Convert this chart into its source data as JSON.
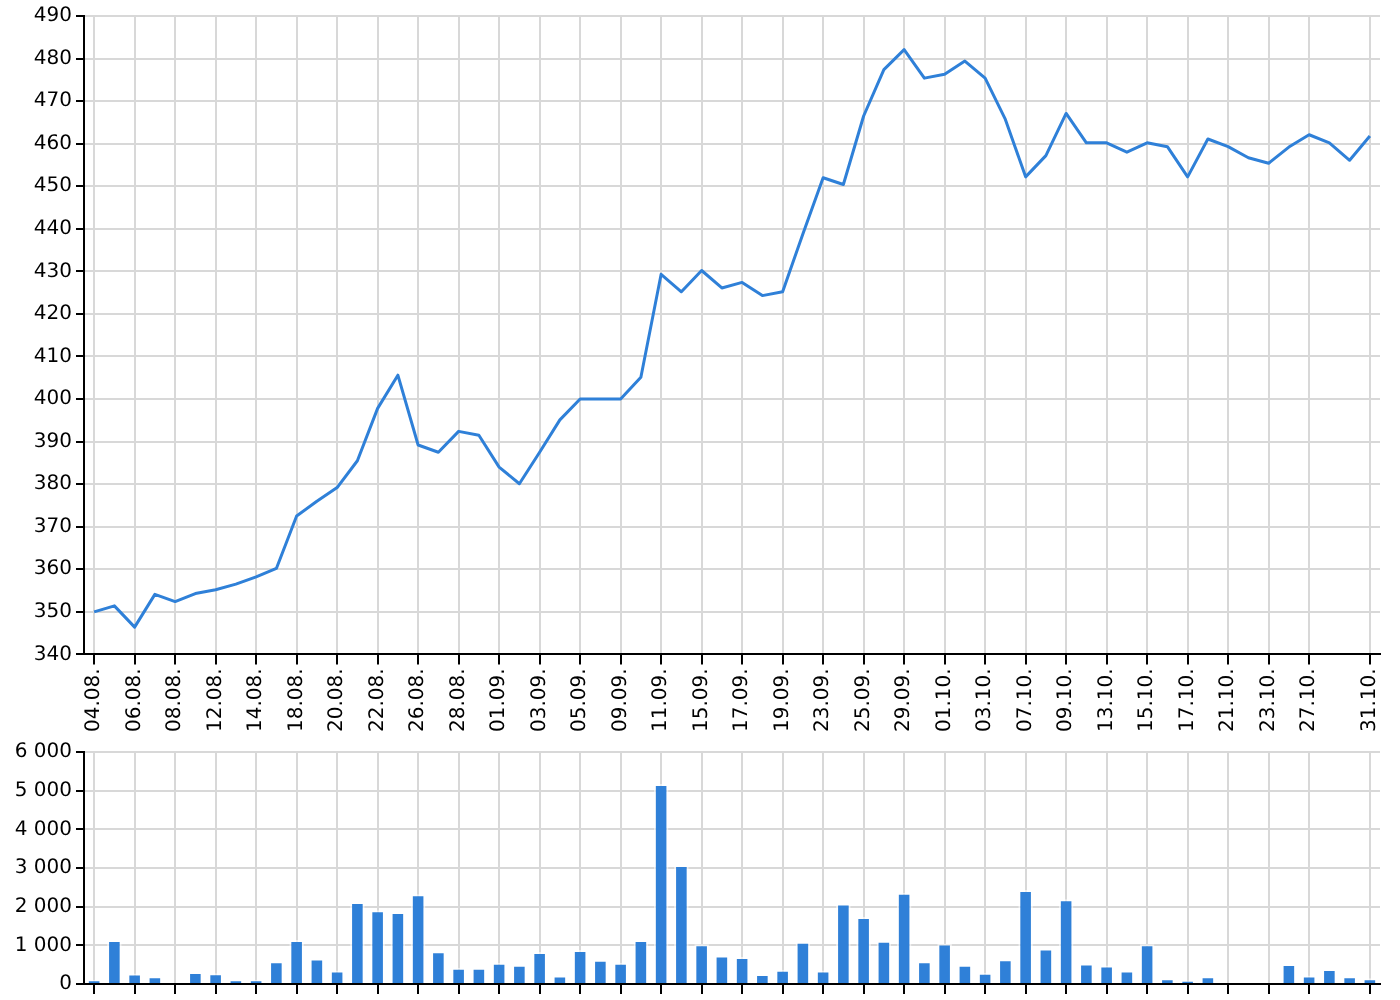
{
  "chart_data": [
    {
      "type": "line",
      "categories": [
        "04.08.",
        null,
        "06.08.",
        null,
        "08.08.",
        null,
        "12.08.",
        null,
        "14.08.",
        null,
        "18.08.",
        null,
        "20.08.",
        null,
        "22.08.",
        null,
        "26.08.",
        null,
        "28.08.",
        null,
        "01.09.",
        null,
        "03.09.",
        null,
        "05.09.",
        null,
        "09.09.",
        null,
        "11.09.",
        null,
        "15.09.",
        null,
        "17.09.",
        null,
        "19.09.",
        null,
        "23.09.",
        null,
        "25.09.",
        null,
        "29.09.",
        null,
        "01.10.",
        null,
        "03.10.",
        null,
        "07.10.",
        null,
        "09.10.",
        null,
        "13.10.",
        null,
        "15.10.",
        null,
        "17.10.",
        null,
        "21.10.",
        null,
        "23.10.",
        null,
        "27.10.",
        null,
        null,
        "31.10."
      ],
      "series": [
        {
          "color": "#2f80d8",
          "values": [
            350,
            351.4,
            346.4,
            354.1,
            352.4,
            354.3,
            355.2,
            356.5,
            358.2,
            360.2,
            372.5,
            376,
            379.2,
            385.5,
            397.8,
            405.6,
            389.2,
            387.5,
            392.4,
            391.5,
            384,
            380.1,
            387.5,
            395.1,
            400,
            400,
            400,
            405.1,
            429.3,
            425.2,
            430.2,
            426.1,
            427.4,
            424.3,
            425.2,
            438.8,
            452,
            450.4,
            466.5,
            477.4,
            482.1,
            475.4,
            476.3,
            479.4,
            475.4,
            465.7,
            452.2,
            457.2,
            467.1,
            460.2,
            460.2,
            458,
            460.2,
            459.3,
            452.2,
            461.1,
            459.3,
            456.7,
            455.4,
            459.2,
            462.1,
            460.2,
            456.1,
            461.8
          ]
        }
      ],
      "ylim": [
        340,
        490
      ],
      "yticks": [
        340,
        350,
        360,
        370,
        380,
        390,
        400,
        410,
        420,
        430,
        440,
        450,
        460,
        470,
        480,
        490
      ],
      "grid": true,
      "legend": false,
      "marker": "none",
      "line_style": "solid"
    },
    {
      "type": "bar",
      "categories": [
        "04.08.",
        null,
        "06.08.",
        null,
        "08.08.",
        null,
        "12.08.",
        null,
        "14.08.",
        null,
        "18.08.",
        null,
        "20.08.",
        null,
        "22.08.",
        null,
        "26.08.",
        null,
        "28.08.",
        null,
        "01.09.",
        null,
        "03.09.",
        null,
        "05.09.",
        null,
        "09.09.",
        null,
        "11.09.",
        null,
        "15.09.",
        null,
        "17.09.",
        null,
        "19.09.",
        null,
        "23.09.",
        null,
        "25.09.",
        null,
        "29.09.",
        null,
        "01.10.",
        null,
        "03.10.",
        null,
        "07.10.",
        null,
        "09.10.",
        null,
        "13.10.",
        null,
        "15.10.",
        null,
        "17.10.",
        null,
        "21.10.",
        null,
        "23.10.",
        null,
        "27.10.",
        null,
        null,
        "31.10."
      ],
      "series": [
        {
          "color": "#2f80d8",
          "values": [
            110,
            1140,
            270,
            200,
            0,
            310,
            280,
            110,
            110,
            590,
            1140,
            660,
            350,
            2120,
            1910,
            1860,
            2320,
            850,
            420,
            420,
            550,
            500,
            830,
            220,
            880,
            630,
            550,
            1140,
            5170,
            3080,
            1030,
            740,
            700,
            260,
            370,
            1090,
            350,
            2080,
            1730,
            1120,
            2360,
            590,
            1050,
            500,
            290,
            640,
            2430,
            920,
            2190,
            530,
            480,
            350,
            1030,
            150,
            90,
            200,
            0,
            0,
            0,
            520,
            220,
            390,
            200,
            150
          ]
        }
      ],
      "ylim": [
        0,
        6000
      ],
      "yticks": [
        0,
        {
          "value": 1000,
          "label": "1 000"
        },
        {
          "value": 2000,
          "label": "2 000"
        },
        {
          "value": 3000,
          "label": "3 000"
        },
        {
          "value": 4000,
          "label": "4 000"
        },
        {
          "value": 5000,
          "label": "5 000"
        },
        {
          "value": 6000,
          "label": "6 000"
        }
      ],
      "grid": true,
      "legend": false,
      "tick_labels": "y"
    }
  ]
}
